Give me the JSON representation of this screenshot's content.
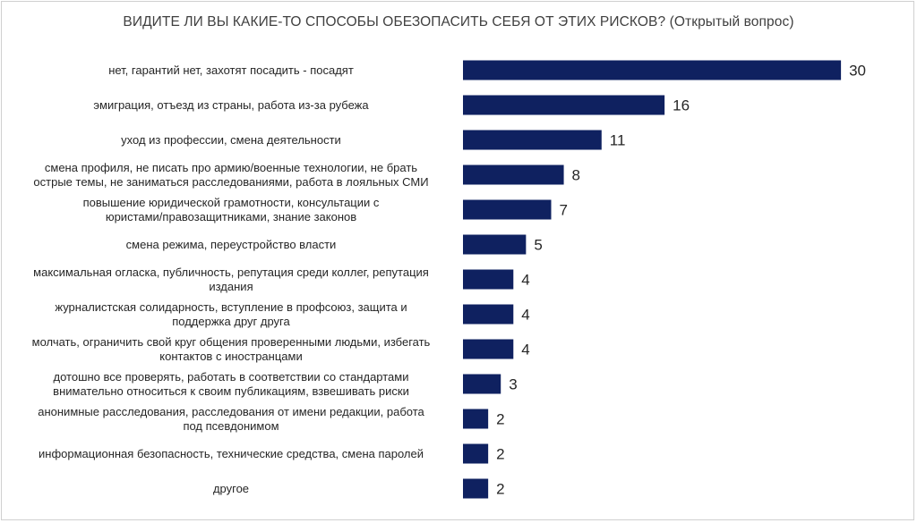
{
  "chart_data": {
    "type": "bar",
    "orientation": "horizontal",
    "title": "ВИДИТЕ ЛИ ВЫ КАКИЕ-ТО СПОСОБЫ ОБЕЗОПАСИТЬ СЕБЯ ОТ ЭТИХ РИСКОВ? (Открытый вопрос)",
    "categories": [
      [
        "нет, гарантий нет, захотят посадить - посадят"
      ],
      [
        "эмиграция, отъезд из страны, работа из-за рубежа"
      ],
      [
        "уход из профессии, смена деятельности"
      ],
      [
        "смена профиля, не писать про армию/военные технологии, не брать",
        "острые темы, не заниматься расследованиями, работа в лояльных СМИ"
      ],
      [
        "повышение юридической грамотности, консультации с",
        "юристами/правозащитниками, знание законов"
      ],
      [
        "смена режима, переустройство власти"
      ],
      [
        "максимальная огласка, публичность, репутация среди коллег, репутация",
        "издания"
      ],
      [
        "журналистская солидарность, вступление в профсоюз, защита и",
        "поддержка друг друга"
      ],
      [
        "молчать, ограничить свой круг общения проверенными людьми, избегать",
        "контактов с иностранцами"
      ],
      [
        "дотошно все проверять, работать в соответствии со стандартами",
        "внимательно относиться к своим публикациям, взвешивать риски"
      ],
      [
        "анонимные расследования, расследования от имени редакции, работа",
        "под псевдонимом"
      ],
      [
        "информационная безопасность, технические средства, смена паролей"
      ],
      [
        "другое"
      ]
    ],
    "values": [
      30,
      16,
      11,
      8,
      7,
      5,
      4,
      4,
      4,
      3,
      2,
      2,
      2
    ],
    "xlim": [
      0,
      30
    ],
    "grid": false,
    "legend": "none",
    "bar_color": "#0f2160"
  }
}
